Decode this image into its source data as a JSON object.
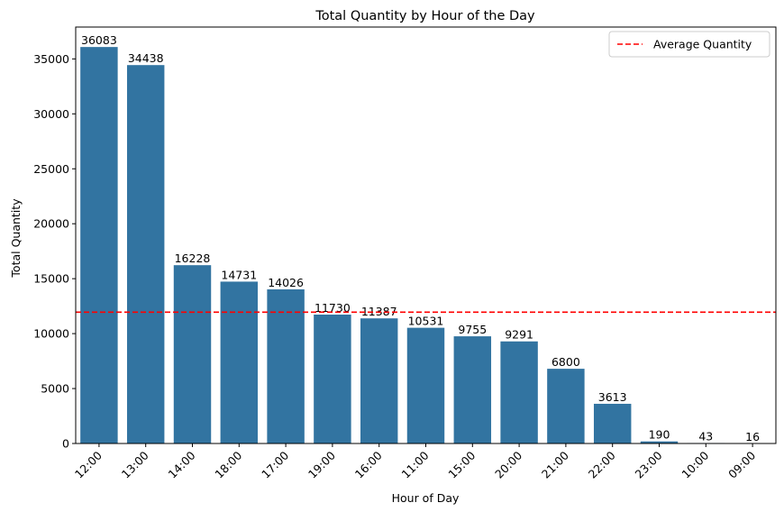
{
  "chart_data": {
    "type": "bar",
    "title": "Total Quantity by Hour of the Day",
    "xlabel": "Hour of Day",
    "ylabel": "Total Quantity",
    "categories": [
      "12:00",
      "13:00",
      "14:00",
      "18:00",
      "17:00",
      "19:00",
      "16:00",
      "11:00",
      "15:00",
      "20:00",
      "21:00",
      "22:00",
      "23:00",
      "10:00",
      "09:00"
    ],
    "values": [
      36083,
      34438,
      16228,
      14731,
      14026,
      11730,
      11387,
      10531,
      9755,
      9291,
      6800,
      3613,
      190,
      43,
      16
    ],
    "ylim": [
      0,
      37900
    ],
    "yticks": [
      0,
      5000,
      10000,
      15000,
      20000,
      25000,
      30000,
      35000
    ],
    "bar_color": "#3274a1",
    "reference_line": {
      "label": "Average Quantity",
      "value": 11951,
      "color": "#ff0000",
      "style": "dashed"
    },
    "legend": {
      "position": "top-right",
      "entries": [
        "Average Quantity"
      ]
    },
    "grid": false
  }
}
